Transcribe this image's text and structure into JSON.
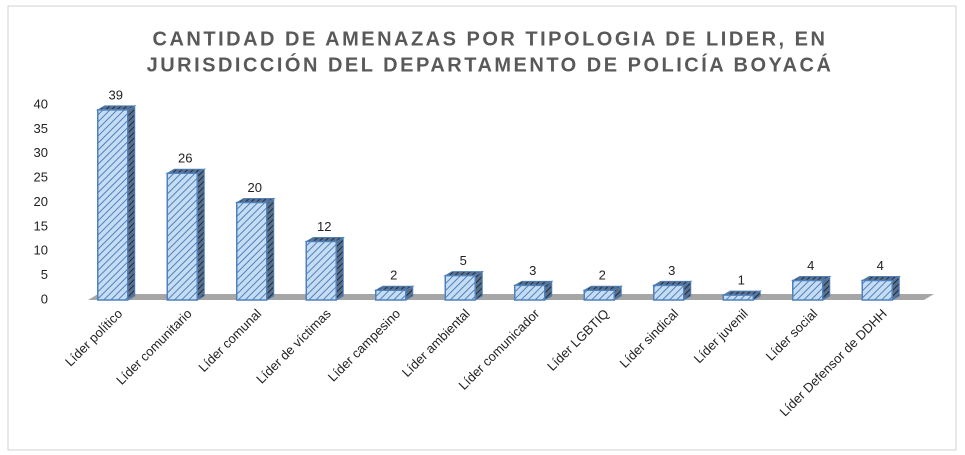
{
  "chart_data": {
    "type": "bar",
    "title": [
      "CANTIDAD DE AMENAZAS POR TIPOLOGIA DE LIDER, EN",
      "JURISDICCIÓN DEL DEPARTAMENTO  DE POLICÍA BOYACÁ"
    ],
    "categories": [
      "Líder político",
      "Líder comunitario",
      "Líder comunal",
      "Líder de víctimas",
      "Líder campesino",
      "Líder ambiental",
      "Líder comunicador",
      "Líder LGBTIQ",
      "Líder sindical",
      "Líder juvenil",
      "Líder social",
      "Líder Defensor de DDHH"
    ],
    "values": [
      39,
      26,
      20,
      12,
      2,
      5,
      3,
      2,
      3,
      1,
      4,
      4
    ],
    "color": "#4f81bd",
    "ylim": [
      0,
      40
    ],
    "yticks": [
      0,
      5,
      10,
      15,
      20,
      25,
      30,
      35,
      40
    ],
    "grid": false
  }
}
